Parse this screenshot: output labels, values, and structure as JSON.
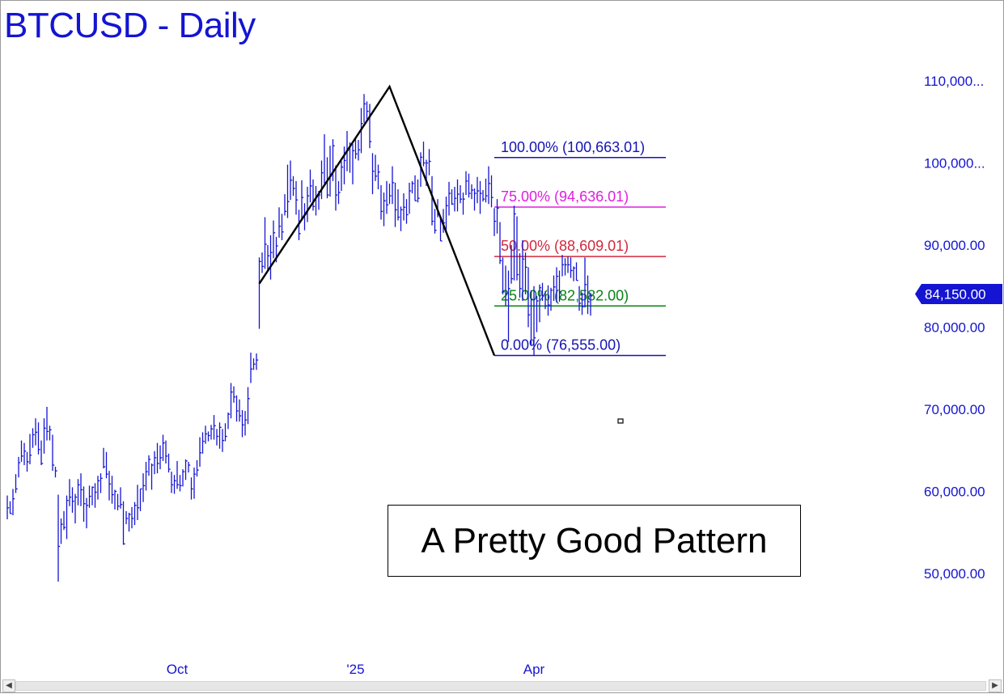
{
  "title": "BTCUSD - Daily",
  "annotation": "A Pretty Good Pattern",
  "last_price": {
    "label": "84,150.00",
    "value": 84150
  },
  "colors": {
    "bars": "#1414d2",
    "text": "#1414d2",
    "fib_100": "#1414b4",
    "fib_75": "#e01ee0",
    "fib_50": "#d2283c",
    "fib_25": "#0a8214",
    "fib_0": "#1414b4",
    "pattern_line": "#000000"
  },
  "chart_data": {
    "type": "bar",
    "symbol": "BTCUSD",
    "timeframe": "Daily",
    "y_axis": {
      "ticks": [
        110000,
        100000,
        90000,
        80000,
        70000,
        60000,
        50000
      ],
      "tick_labels": [
        "110,000...",
        "100,000...",
        "90,000.00",
        "80,000.00",
        "70,000.00",
        "60,000.00",
        "50,000.00"
      ],
      "ylim": [
        40700,
        113000
      ]
    },
    "x_axis": {
      "tick_labels": [
        "Oct",
        "'25",
        "Apr"
      ],
      "tick_bar_index": [
        60,
        123,
        186
      ]
    },
    "fib_levels": [
      {
        "label": "100.00% (100,663.01)",
        "pct": 100,
        "value": 100663.01,
        "color": "#1414b4"
      },
      {
        "label": "75.00% (94,636.01)",
        "pct": 75,
        "value": 94636.01,
        "color": "#e01ee0"
      },
      {
        "label": "50.00% (88,609.01)",
        "pct": 50,
        "value": 88609.01,
        "color": "#d2283c"
      },
      {
        "label": "25.00% (82,582.00)",
        "pct": 25,
        "value": 82582,
        "color": "#0a8214"
      },
      {
        "label": "0.00% (76,555.00)",
        "pct": 0,
        "value": 76555,
        "color": "#1414b4"
      }
    ],
    "fib_range_bars": [
      172,
      232
    ],
    "pattern_points": [
      {
        "bar": 89,
        "price": 85300
      },
      {
        "bar": 135,
        "price": 109300
      },
      {
        "bar": 172,
        "price": 76555
      }
    ],
    "bars": [
      {
        "h": 59500,
        "l": 56600,
        "c": 58000
      },
      {
        "h": 58800,
        "l": 57300,
        "c": 57300
      },
      {
        "h": 60300,
        "l": 57100,
        "c": 59100
      },
      {
        "h": 62100,
        "l": 59800,
        "c": 60300
      },
      {
        "h": 64200,
        "l": 61700,
        "c": 63500
      },
      {
        "h": 66200,
        "l": 63600,
        "c": 64300
      },
      {
        "h": 65900,
        "l": 63200,
        "c": 64900
      },
      {
        "h": 64800,
        "l": 62400,
        "c": 63600
      },
      {
        "h": 67000,
        "l": 63300,
        "c": 64400
      },
      {
        "h": 67700,
        "l": 65300,
        "c": 66900
      },
      {
        "h": 68900,
        "l": 65600,
        "c": 67200
      },
      {
        "h": 68400,
        "l": 64500,
        "c": 65100
      },
      {
        "h": 66200,
        "l": 63200,
        "c": 63400
      },
      {
        "h": 68900,
        "l": 64600,
        "c": 67700
      },
      {
        "h": 70300,
        "l": 66200,
        "c": 67300
      },
      {
        "h": 68000,
        "l": 66200,
        "c": 67500
      },
      {
        "h": 66900,
        "l": 62500,
        "c": 63200
      },
      {
        "h": 63000,
        "l": 61700,
        "c": 62500
      },
      {
        "h": 59600,
        "l": 49000,
        "c": 53300
      },
      {
        "h": 56700,
        "l": 53600,
        "c": 56000
      },
      {
        "h": 57600,
        "l": 55300,
        "c": 55600
      },
      {
        "h": 59500,
        "l": 54200,
        "c": 58900
      },
      {
        "h": 61500,
        "l": 58200,
        "c": 59300
      },
      {
        "h": 60500,
        "l": 57400,
        "c": 58800
      },
      {
        "h": 59700,
        "l": 56100,
        "c": 59300
      },
      {
        "h": 61500,
        "l": 58300,
        "c": 60800
      },
      {
        "h": 62200,
        "l": 58200,
        "c": 60200
      },
      {
        "h": 60600,
        "l": 56300,
        "c": 58500
      },
      {
        "h": 59200,
        "l": 55500,
        "c": 58300
      },
      {
        "h": 60700,
        "l": 58000,
        "c": 59400
      },
      {
        "h": 60600,
        "l": 58300,
        "c": 60500
      },
      {
        "h": 61000,
        "l": 58000,
        "c": 59900
      },
      {
        "h": 61900,
        "l": 59000,
        "c": 61300
      },
      {
        "h": 62200,
        "l": 59800,
        "c": 61600
      },
      {
        "h": 65300,
        "l": 62800,
        "c": 63000
      },
      {
        "h": 64800,
        "l": 61600,
        "c": 62100
      },
      {
        "h": 62500,
        "l": 58900,
        "c": 60900
      },
      {
        "h": 61900,
        "l": 58500,
        "c": 59600
      },
      {
        "h": 60200,
        "l": 57800,
        "c": 60000
      },
      {
        "h": 59700,
        "l": 57700,
        "c": 58200
      },
      {
        "h": 60500,
        "l": 57900,
        "c": 58400
      },
      {
        "h": 58800,
        "l": 53500,
        "c": 53600
      },
      {
        "h": 57600,
        "l": 56000,
        "c": 56700
      },
      {
        "h": 57400,
        "l": 55100,
        "c": 57200
      },
      {
        "h": 58100,
        "l": 55500,
        "c": 56700
      },
      {
        "h": 58700,
        "l": 55900,
        "c": 58300
      },
      {
        "h": 60800,
        "l": 56500,
        "c": 58000
      },
      {
        "h": 60300,
        "l": 57600,
        "c": 60300
      },
      {
        "h": 62200,
        "l": 58700,
        "c": 60700
      },
      {
        "h": 63600,
        "l": 60100,
        "c": 62400
      },
      {
        "h": 64400,
        "l": 61900,
        "c": 63900
      },
      {
        "h": 63400,
        "l": 60200,
        "c": 63200
      },
      {
        "h": 64900,
        "l": 62100,
        "c": 64100
      },
      {
        "h": 65900,
        "l": 62200,
        "c": 63400
      },
      {
        "h": 65600,
        "l": 62700,
        "c": 64100
      },
      {
        "h": 66900,
        "l": 63700,
        "c": 65900
      },
      {
        "h": 66200,
        "l": 63400,
        "c": 64300
      },
      {
        "h": 64600,
        "l": 62300,
        "c": 62700
      },
      {
        "h": 62400,
        "l": 59800,
        "c": 60800
      },
      {
        "h": 62000,
        "l": 59700,
        "c": 61300
      },
      {
        "h": 63700,
        "l": 60300,
        "c": 60800
      },
      {
        "h": 62000,
        "l": 60000,
        "c": 60700
      },
      {
        "h": 62700,
        "l": 60600,
        "c": 62400
      },
      {
        "h": 63900,
        "l": 61400,
        "c": 63700
      },
      {
        "h": 63600,
        "l": 62300,
        "c": 63200
      },
      {
        "h": 61700,
        "l": 59000,
        "c": 60300
      },
      {
        "h": 62900,
        "l": 59100,
        "c": 62100
      },
      {
        "h": 63800,
        "l": 61800,
        "c": 62600
      },
      {
        "h": 66600,
        "l": 63000,
        "c": 64700
      },
      {
        "h": 67200,
        "l": 64600,
        "c": 66100
      },
      {
        "h": 68000,
        "l": 65800,
        "c": 67000
      },
      {
        "h": 67300,
        "l": 66100,
        "c": 66800
      },
      {
        "h": 68100,
        "l": 66300,
        "c": 67600
      },
      {
        "h": 69300,
        "l": 66300,
        "c": 68000
      },
      {
        "h": 67600,
        "l": 65600,
        "c": 66700
      },
      {
        "h": 68400,
        "l": 65200,
        "c": 67800
      },
      {
        "h": 67600,
        "l": 64800,
        "c": 66200
      },
      {
        "h": 68300,
        "l": 66100,
        "c": 66700
      },
      {
        "h": 69600,
        "l": 67600,
        "c": 69400
      },
      {
        "h": 73200,
        "l": 68900,
        "c": 72100
      },
      {
        "h": 72800,
        "l": 70800,
        "c": 71500
      },
      {
        "h": 71700,
        "l": 68500,
        "c": 69800
      },
      {
        "h": 71200,
        "l": 68500,
        "c": 69200
      },
      {
        "h": 69900,
        "l": 66600,
        "c": 68100
      },
      {
        "h": 69800,
        "l": 66800,
        "c": 68700
      },
      {
        "h": 72700,
        "l": 68200,
        "c": 71300
      },
      {
        "h": 76900,
        "l": 73200,
        "c": 74900
      },
      {
        "h": 76200,
        "l": 74800,
        "c": 75500
      },
      {
        "h": 76800,
        "l": 74800,
        "c": 76000
      },
      {
        "h": 88500,
        "l": 79800,
        "c": 88000
      },
      {
        "h": 89100,
        "l": 86600,
        "c": 87400
      },
      {
        "h": 93400,
        "l": 87100,
        "c": 90100
      },
      {
        "h": 90000,
        "l": 86800,
        "c": 88700
      },
      {
        "h": 91200,
        "l": 85800,
        "c": 89100
      },
      {
        "h": 93000,
        "l": 88400,
        "c": 91500
      },
      {
        "h": 91000,
        "l": 87900,
        "c": 89900
      },
      {
        "h": 94600,
        "l": 90900,
        "c": 92300
      },
      {
        "h": 93800,
        "l": 90600,
        "c": 91600
      },
      {
        "h": 96200,
        "l": 93600,
        "c": 94100
      },
      {
        "h": 99800,
        "l": 93300,
        "c": 95300
      },
      {
        "h": 100300,
        "l": 95500,
        "c": 97900
      },
      {
        "h": 98400,
        "l": 96000,
        "c": 96900
      },
      {
        "h": 97800,
        "l": 93700,
        "c": 95500
      },
      {
        "h": 94300,
        "l": 90600,
        "c": 91400
      },
      {
        "h": 97900,
        "l": 93000,
        "c": 95800
      },
      {
        "h": 95100,
        "l": 91800,
        "c": 93700
      },
      {
        "h": 97100,
        "l": 92800,
        "c": 96000
      },
      {
        "h": 99200,
        "l": 95200,
        "c": 97200
      },
      {
        "h": 98000,
        "l": 94200,
        "c": 94700
      },
      {
        "h": 97200,
        "l": 93600,
        "c": 95900
      },
      {
        "h": 96600,
        "l": 94300,
        "c": 96100
      },
      {
        "h": 100300,
        "l": 95600,
        "c": 98800
      },
      {
        "h": 103500,
        "l": 97500,
        "c": 97600
      },
      {
        "h": 100700,
        "l": 95700,
        "c": 96100
      },
      {
        "h": 102100,
        "l": 95900,
        "c": 98400
      },
      {
        "h": 102900,
        "l": 97800,
        "c": 102100
      },
      {
        "h": 99700,
        "l": 94200,
        "c": 96100
      },
      {
        "h": 97800,
        "l": 95000,
        "c": 96400
      },
      {
        "h": 100200,
        "l": 96600,
        "c": 99500
      },
      {
        "h": 102000,
        "l": 97400,
        "c": 100300
      },
      {
        "h": 103900,
        "l": 99000,
        "c": 101500
      },
      {
        "h": 102500,
        "l": 98800,
        "c": 102300
      },
      {
        "h": 102300,
        "l": 97400,
        "c": 101500
      },
      {
        "h": 103200,
        "l": 100500,
        "c": 101100
      },
      {
        "h": 102800,
        "l": 100300,
        "c": 101600
      },
      {
        "h": 106700,
        "l": 101200,
        "c": 104800
      },
      {
        "h": 108400,
        "l": 104900,
        "c": 107200
      },
      {
        "h": 107500,
        "l": 105300,
        "c": 106300
      },
      {
        "h": 107200,
        "l": 101800,
        "c": 102600
      },
      {
        "h": 101200,
        "l": 96200,
        "c": 99000
      },
      {
        "h": 101000,
        "l": 97800,
        "c": 98400
      },
      {
        "h": 99800,
        "l": 96800,
        "c": 98900
      },
      {
        "h": 97300,
        "l": 93100,
        "c": 94100
      },
      {
        "h": 96400,
        "l": 92300,
        "c": 95400
      },
      {
        "h": 97800,
        "l": 93800,
        "c": 94900
      },
      {
        "h": 97500,
        "l": 95000,
        "c": 96000
      },
      {
        "h": 99600,
        "l": 95000,
        "c": 97600
      },
      {
        "h": 97600,
        "l": 92200,
        "c": 94300
      },
      {
        "h": 96800,
        "l": 93000,
        "c": 93400
      },
      {
        "h": 94700,
        "l": 91700,
        "c": 94300
      },
      {
        "h": 96300,
        "l": 93000,
        "c": 94600
      },
      {
        "h": 95600,
        "l": 92600,
        "c": 93700
      },
      {
        "h": 97600,
        "l": 93800,
        "c": 96600
      },
      {
        "h": 97800,
        "l": 96300,
        "c": 97500
      },
      {
        "h": 98500,
        "l": 95400,
        "c": 95400
      },
      {
        "h": 98000,
        "l": 95200,
        "c": 95700
      },
      {
        "h": 101300,
        "l": 97100,
        "c": 100700
      },
      {
        "h": 102600,
        "l": 99600,
        "c": 100000
      },
      {
        "h": 100400,
        "l": 97200,
        "c": 100000
      },
      {
        "h": 101700,
        "l": 98500,
        "c": 100200
      },
      {
        "h": 98400,
        "l": 92400,
        "c": 92900
      },
      {
        "h": 94400,
        "l": 91400,
        "c": 91800
      },
      {
        "h": 95600,
        "l": 93400,
        "c": 93700
      },
      {
        "h": 93500,
        "l": 90500,
        "c": 90500
      },
      {
        "h": 94400,
        "l": 91500,
        "c": 92700
      },
      {
        "h": 95900,
        "l": 91500,
        "c": 94800
      },
      {
        "h": 97700,
        "l": 93600,
        "c": 96300
      },
      {
        "h": 96800,
        "l": 94900,
        "c": 95000
      },
      {
        "h": 97100,
        "l": 94100,
        "c": 95700
      },
      {
        "h": 98000,
        "l": 94100,
        "c": 96200
      },
      {
        "h": 97300,
        "l": 95100,
        "c": 95600
      },
      {
        "h": 96400,
        "l": 93700,
        "c": 95600
      },
      {
        "h": 99000,
        "l": 96100,
        "c": 97800
      },
      {
        "h": 98700,
        "l": 95800,
        "c": 96300
      },
      {
        "h": 97400,
        "l": 95600,
        "c": 96700
      },
      {
        "h": 96900,
        "l": 94200,
        "c": 96300
      },
      {
        "h": 98300,
        "l": 95100,
        "c": 96600
      },
      {
        "h": 97800,
        "l": 93800,
        "c": 96300
      },
      {
        "h": 96700,
        "l": 95300,
        "c": 95600
      },
      {
        "h": 98100,
        "l": 95200,
        "c": 96000
      },
      {
        "h": 99600,
        "l": 95000,
        "c": 97500
      },
      {
        "h": 98500,
        "l": 94600,
        "c": 95800
      },
      {
        "h": 94500,
        "l": 91100,
        "c": 92900
      },
      {
        "h": 95600,
        "l": 91400,
        "c": 94500
      },
      {
        "h": 92800,
        "l": 87700,
        "c": 88100
      },
      {
        "h": 88500,
        "l": 84000,
        "c": 84300
      },
      {
        "h": 87500,
        "l": 82600,
        "c": 84100
      },
      {
        "h": 86900,
        "l": 78200,
        "c": 84700
      },
      {
        "h": 90000,
        "l": 85300,
        "c": 85900
      },
      {
        "h": 94800,
        "l": 85700,
        "c": 93800
      },
      {
        "h": 93500,
        "l": 85700,
        "c": 86400
      },
      {
        "h": 89000,
        "l": 83600,
        "c": 84700
      },
      {
        "h": 90600,
        "l": 83200,
        "c": 88300
      },
      {
        "h": 89100,
        "l": 84000,
        "c": 87300
      },
      {
        "h": 87300,
        "l": 80000,
        "c": 81500
      },
      {
        "h": 84500,
        "l": 77700,
        "c": 83400
      },
      {
        "h": 85000,
        "l": 76600,
        "c": 78700
      },
      {
        "h": 83800,
        "l": 79400,
        "c": 83200
      },
      {
        "h": 85200,
        "l": 80600,
        "c": 84800
      },
      {
        "h": 85400,
        "l": 83200,
        "c": 83800
      },
      {
        "h": 84400,
        "l": 82200,
        "c": 82600
      },
      {
        "h": 85100,
        "l": 81400,
        "c": 82700
      },
      {
        "h": 84800,
        "l": 82000,
        "c": 84500
      },
      {
        "h": 86300,
        "l": 83200,
        "c": 84900
      },
      {
        "h": 87300,
        "l": 83000,
        "c": 86200
      },
      {
        "h": 86900,
        "l": 83100,
        "c": 84300
      },
      {
        "h": 88800,
        "l": 86200,
        "c": 87600
      },
      {
        "h": 88400,
        "l": 86300,
        "c": 87600
      },
      {
        "h": 88600,
        "l": 86600,
        "c": 87600
      },
      {
        "h": 88500,
        "l": 86000,
        "c": 86900
      },
      {
        "h": 87400,
        "l": 85600,
        "c": 87200
      },
      {
        "h": 87900,
        "l": 85700,
        "c": 85700
      },
      {
        "h": 85000,
        "l": 82000,
        "c": 82900
      },
      {
        "h": 84200,
        "l": 81500,
        "c": 82500
      },
      {
        "h": 88500,
        "l": 82400,
        "c": 85200
      },
      {
        "h": 86300,
        "l": 81600,
        "c": 83100
      },
      {
        "h": 84200,
        "l": 81400,
        "c": 83800
      }
    ]
  }
}
